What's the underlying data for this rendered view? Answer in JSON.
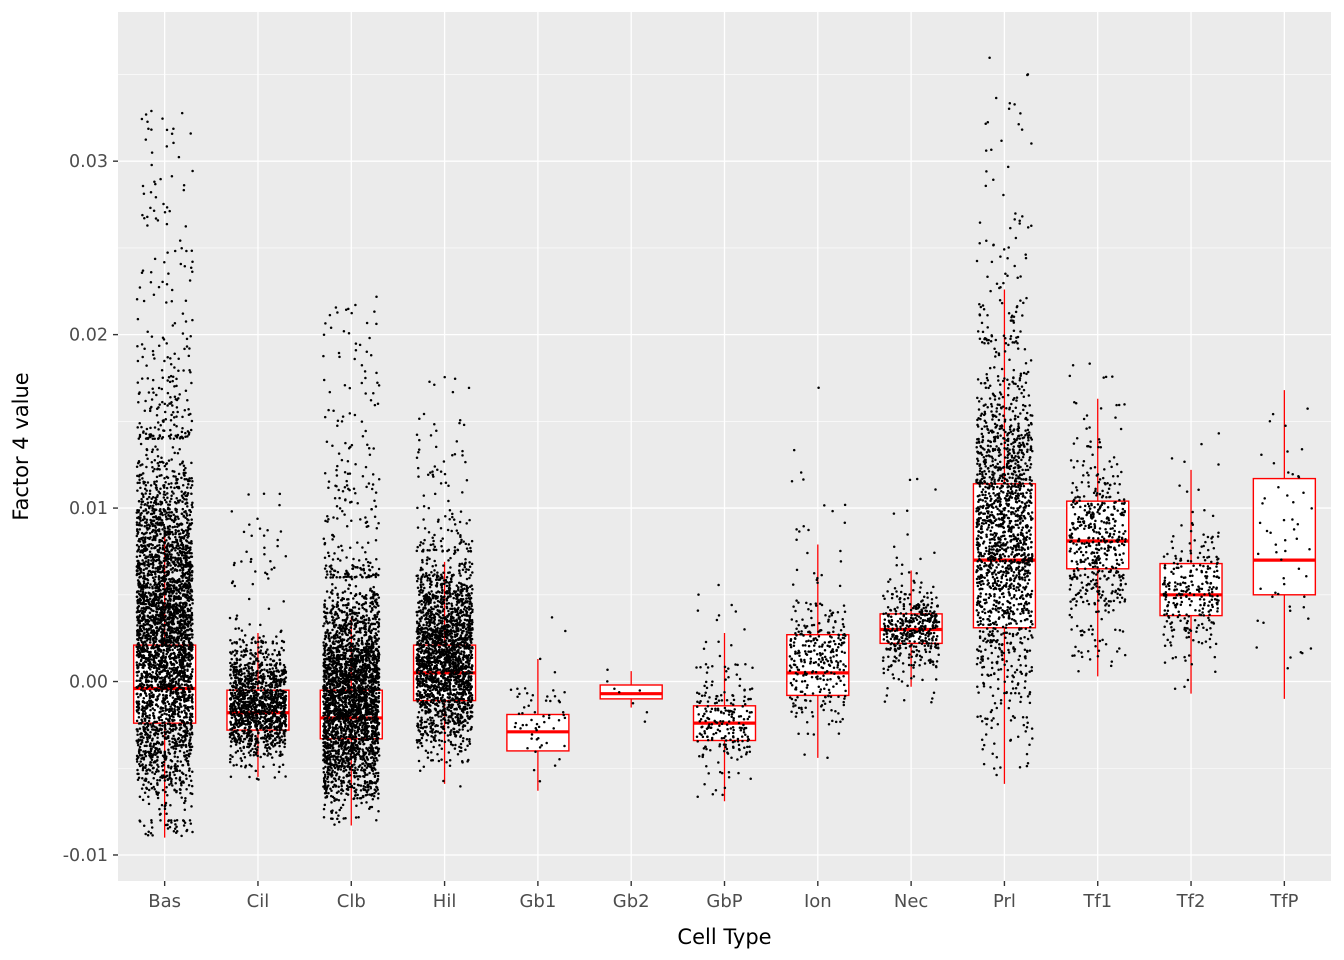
{
  "figure": {
    "panel_bg": "#EBEBEB",
    "grid_major_color": "#FFFFFF",
    "grid_minor_color": "#FFFFFF",
    "tick_label_color": "#4D4D4D",
    "tick_mark_color": "#333333",
    "axis_title_color": "#000000",
    "box_color": "#FF0000",
    "box_fill": "#FFFFFF",
    "point_color": "#000000"
  },
  "chart_data": {
    "type": "boxplot",
    "overlay": "jitter-points",
    "title": "",
    "xlabel": "Cell Type",
    "ylabel": "Factor 4 value",
    "ylim": [
      -0.0115,
      0.0386
    ],
    "yticks": [
      -0.01,
      0,
      0.01,
      0.02,
      0.03
    ],
    "ytick_labels": [
      "-0.01",
      "0.00",
      "0.01",
      "0.02",
      "0.03"
    ],
    "yticks_minor": [
      -0.005,
      0.005,
      0.015,
      0.025,
      0.035
    ],
    "grid": true,
    "legend": "none",
    "categories": [
      "Bas",
      "Cil",
      "Clb",
      "Hil",
      "Gb1",
      "Gb2",
      "GbP",
      "Ion",
      "Nec",
      "Prl",
      "Tf1",
      "Tf2",
      "TfP"
    ],
    "series": [
      {
        "label": "Bas",
        "n": 3600,
        "box": {
          "q1": -0.0024,
          "median": -0.0004,
          "q3": 0.0021,
          "whisker_low": -0.009,
          "whisker_high": 0.0086
        },
        "points": {
          "min": -0.0089,
          "max": 0.033,
          "core_low": -0.008,
          "core_high": 0.014,
          "tail_up": 0.07,
          "tail_down": 0.012
        }
      },
      {
        "label": "Cil",
        "n": 1300,
        "box": {
          "q1": -0.0028,
          "median": -0.0018,
          "q3": -0.0005,
          "whisker_low": -0.0055,
          "whisker_high": 0.0028
        },
        "points": {
          "min": -0.0057,
          "max": 0.011,
          "core_low": -0.0048,
          "core_high": 0.0022,
          "tail_up": 0.06,
          "tail_down": 0.01
        }
      },
      {
        "label": "Clb",
        "n": 3000,
        "box": {
          "q1": -0.0033,
          "median": -0.0021,
          "q3": -0.0005,
          "whisker_low": -0.0083,
          "whisker_high": 0.0037
        },
        "points": {
          "min": -0.0085,
          "max": 0.0222,
          "core_low": -0.0078,
          "core_high": 0.006,
          "tail_up": 0.07,
          "tail_down": 0.004
        }
      },
      {
        "label": "Hil",
        "n": 2200,
        "box": {
          "q1": -0.0011,
          "median": 0.0005,
          "q3": 0.0021,
          "whisker_low": -0.0059,
          "whisker_high": 0.0069
        },
        "points": {
          "min": -0.0062,
          "max": 0.0176,
          "core_low": -0.0045,
          "core_high": 0.0075,
          "tail_up": 0.05,
          "tail_down": 0.01
        }
      },
      {
        "label": "Gb1",
        "n": 58,
        "box": {
          "q1": -0.004,
          "median": -0.0029,
          "q3": -0.0019,
          "whisker_low": -0.0063,
          "whisker_high": 0.0013
        },
        "points": {
          "min": -0.0064,
          "max": 0.0046,
          "core_low": -0.0055,
          "core_high": 0.0005,
          "tail_up": 0.08,
          "tail_down": 0.03
        }
      },
      {
        "label": "Gb2",
        "n": 8,
        "box": {
          "q1": -0.001,
          "median": -0.0007,
          "q3": -0.0002,
          "whisker_low": -0.0015,
          "whisker_high": 0.0006
        },
        "points": {
          "min": -0.0032,
          "max": 0.0028,
          "core_low": -0.0012,
          "core_high": 0.0006,
          "tail_up": 0.15,
          "tail_down": 0.15
        }
      },
      {
        "label": "GbP",
        "n": 230,
        "box": {
          "q1": -0.0034,
          "median": -0.0024,
          "q3": -0.0014,
          "whisker_low": -0.0069,
          "whisker_high": 0.0028
        },
        "points": {
          "min": -0.0073,
          "max": 0.0062,
          "core_low": -0.0052,
          "core_high": 0.0008,
          "tail_up": 0.08,
          "tail_down": 0.05
        }
      },
      {
        "label": "Ion",
        "n": 320,
        "box": {
          "q1": -0.0008,
          "median": 0.0005,
          "q3": 0.0027,
          "whisker_low": -0.0044,
          "whisker_high": 0.0079
        },
        "points": {
          "min": -0.0046,
          "max": 0.0175,
          "core_low": -0.003,
          "core_high": 0.0055,
          "tail_up": 0.08,
          "tail_down": 0.04
        }
      },
      {
        "label": "Nec",
        "n": 430,
        "box": {
          "q1": 0.0022,
          "median": 0.003,
          "q3": 0.0039,
          "whisker_low": -0.0003,
          "whisker_high": 0.0064
        },
        "points": {
          "min": -0.0012,
          "max": 0.0118,
          "core_low": 0.0002,
          "core_high": 0.0057,
          "tail_up": 0.06,
          "tail_down": 0.03
        }
      },
      {
        "label": "Prl",
        "n": 1700,
        "box": {
          "q1": 0.0031,
          "median": 0.007,
          "q3": 0.0114,
          "whisker_low": -0.0059,
          "whisker_high": 0.0226
        },
        "points": {
          "min": -0.006,
          "max": 0.036,
          "core_low": -0.002,
          "core_high": 0.0195,
          "tail_up": 0.06,
          "tail_down": 0.025
        }
      },
      {
        "label": "Tf1",
        "n": 500,
        "box": {
          "q1": 0.0065,
          "median": 0.0081,
          "q3": 0.0104,
          "whisker_low": 0.0003,
          "whisker_high": 0.0163
        },
        "points": {
          "min": 0.0002,
          "max": 0.019,
          "core_low": 0.003,
          "core_high": 0.0135,
          "tail_up": 0.05,
          "tail_down": 0.05
        }
      },
      {
        "label": "Tf2",
        "n": 280,
        "box": {
          "q1": 0.0038,
          "median": 0.005,
          "q3": 0.0068,
          "whisker_low": -0.0007,
          "whisker_high": 0.0122
        },
        "points": {
          "min": -0.0008,
          "max": 0.0145,
          "core_low": 0.0015,
          "core_high": 0.009,
          "tail_up": 0.07,
          "tail_down": 0.05
        }
      },
      {
        "label": "TfP",
        "n": 55,
        "box": {
          "q1": 0.005,
          "median": 0.007,
          "q3": 0.0117,
          "whisker_low": -0.001,
          "whisker_high": 0.0168
        },
        "points": {
          "min": -0.001,
          "max": 0.0168,
          "core_low": 0.002,
          "core_high": 0.013,
          "tail_up": 0.12,
          "tail_down": 0.08
        }
      }
    ]
  }
}
